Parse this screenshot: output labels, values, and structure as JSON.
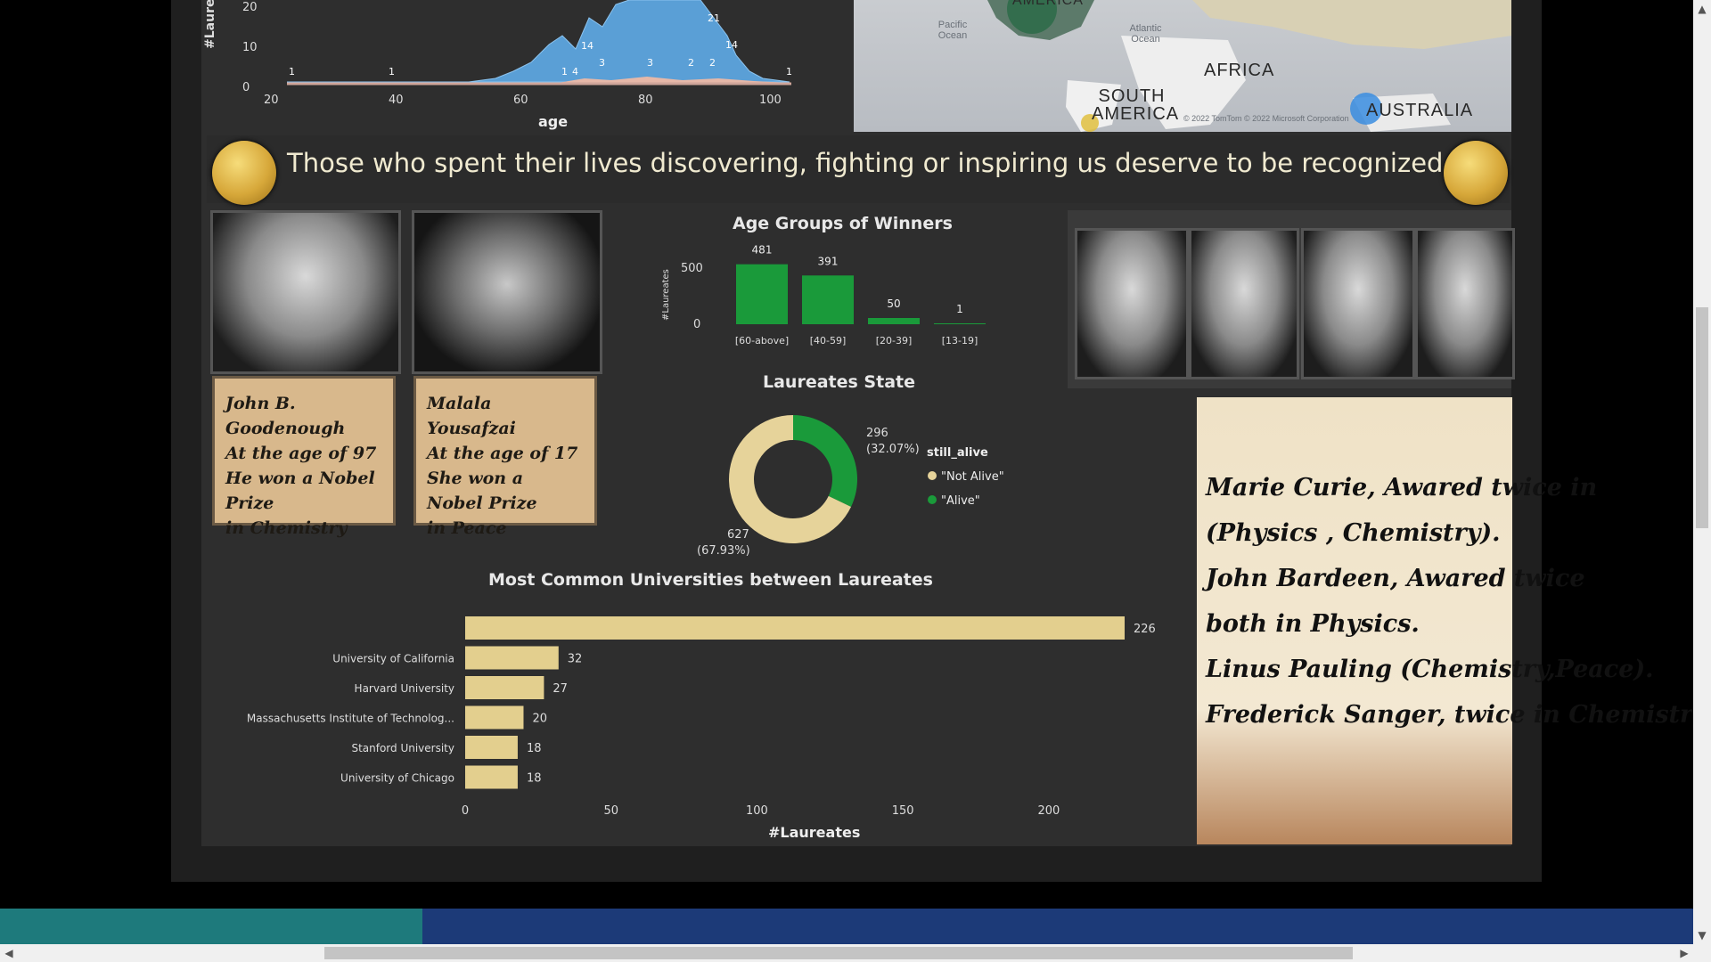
{
  "area_chart": {
    "ylabel": "#Laureates",
    "xlabel": "age",
    "y_ticks": [
      "20",
      "10",
      "0"
    ],
    "x_ticks": [
      "20",
      "40",
      "60",
      "80",
      "100"
    ],
    "labels": [
      "1",
      "1",
      "1",
      "4",
      "14",
      "3",
      "3",
      "21",
      "14",
      "2",
      "2",
      "1"
    ]
  },
  "map": {
    "labels": [
      "AMERICA",
      "AFRICA",
      "SOUTH AMERICA",
      "AUSTRALIA"
    ],
    "oceans": [
      "Pacific Ocean",
      "Atlantic Ocean"
    ],
    "credit": "© 2022 TomTom © 2022 Microsoft Corporation"
  },
  "banner": {
    "text": "Those who spent their lives discovering, fighting or inspiring us deserve to be recognized"
  },
  "cards": [
    {
      "lines": [
        "John B. Goodenough",
        "At the age of 97",
        "He won a Nobel Prize",
        "in Chemistry"
      ]
    },
    {
      "lines": [
        "Malala Yousafzai",
        "At the age of 17",
        "She won a Nobel Prize",
        "in Peace"
      ]
    }
  ],
  "chart_data": [
    {
      "type": "bar",
      "title": "Age Groups of Winners",
      "ylabel": "#Laureates",
      "y_ticks": [
        "500",
        "0"
      ],
      "ylim": [
        0,
        500
      ],
      "categories": [
        "[60-above]",
        "[40-59]",
        "[20-39]",
        "[13-19]"
      ],
      "values": [
        481,
        391,
        50,
        1
      ],
      "value_labels": [
        "481",
        "391",
        "50",
        "1"
      ],
      "color": "#1a9a3a"
    },
    {
      "type": "pie",
      "title": "Laureates State",
      "legend_title": "still_alive",
      "slices": [
        {
          "name": "\"Not Alive\"",
          "value": 627,
          "label": "627",
          "pct": "(67.93%)",
          "color": "#e6d39a"
        },
        {
          "name": "\"Alive\"",
          "value": 296,
          "label": "296",
          "pct": "(32.07%)",
          "color": "#1a9a3a"
        }
      ]
    },
    {
      "type": "bar",
      "orientation": "horizontal",
      "title": "Most Common Universities between Laureates",
      "xlabel": "#Laureates",
      "x_ticks": [
        "0",
        "50",
        "100",
        "150",
        "200"
      ],
      "xlim": [
        0,
        226
      ],
      "categories": [
        "",
        "University of California",
        "Harvard University",
        "Massachusetts Institute of Technolog...",
        "Stanford University",
        "University of Chicago"
      ],
      "values": [
        226,
        32,
        27,
        20,
        18,
        18
      ],
      "value_labels": [
        "226",
        "32",
        "27",
        "20",
        "18",
        "18"
      ],
      "color": "#e3cf8e"
    }
  ],
  "right_note": {
    "lines": [
      "Marie Curie, Awared twice in",
      "(Physics , Chemistry).",
      "John Bardeen, Awared twice",
      "both in Physics.",
      "Linus Pauling (Chemistry,Peace).",
      "Frederick Sanger, twice in Chemistry"
    ]
  }
}
